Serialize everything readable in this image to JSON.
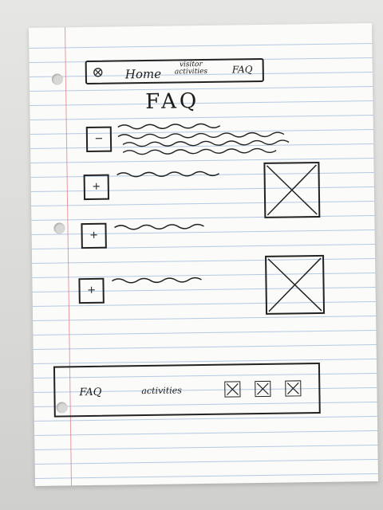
{
  "nav": {
    "home": "Home",
    "visitor_line1": "visitor",
    "visitor_line2": "activities",
    "faq": "FAQ",
    "logo_icon": "x-circle-icon"
  },
  "page": {
    "title": "FAQ"
  },
  "faq_items": [
    {
      "toggle": "−",
      "state": "expanded"
    },
    {
      "toggle": "+",
      "state": "collapsed"
    },
    {
      "toggle": "+",
      "state": "collapsed"
    },
    {
      "toggle": "+",
      "state": "collapsed"
    }
  ],
  "images": [
    {
      "icon": "image-placeholder-icon"
    },
    {
      "icon": "image-placeholder-icon"
    }
  ],
  "footer": {
    "faq": "FAQ",
    "activities": "activities",
    "icons": [
      "social-icon",
      "social-icon",
      "social-icon"
    ]
  },
  "colors": {
    "ink": "#1b1b1b",
    "paper": "#fbfbf9",
    "rule_line": "#78a0d2",
    "margin_line": "#dc5a64"
  }
}
